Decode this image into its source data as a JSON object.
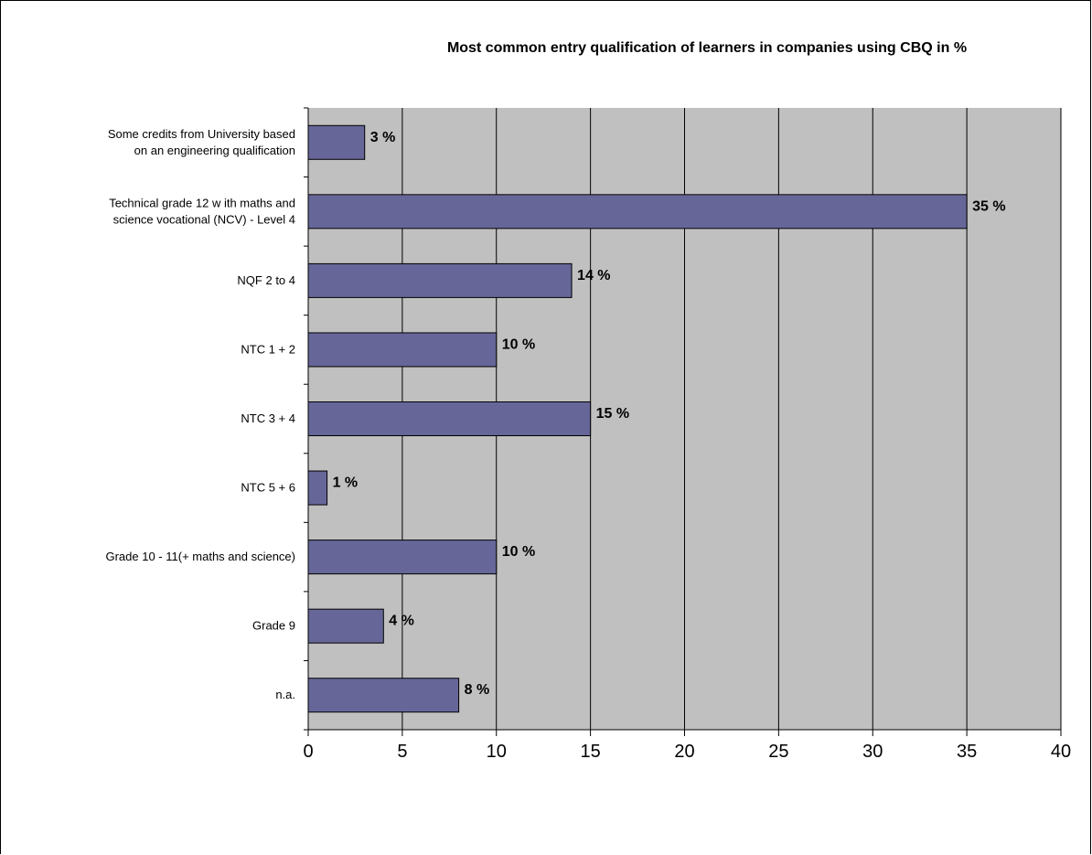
{
  "chart_data": {
    "type": "bar",
    "orientation": "horizontal",
    "title": "Most common entry qualification of learners in companies using CBQ in %",
    "categories": [
      "Some credits from University based on an engineering qualification",
      "Technical grade 12 with maths and science vocational (NCV) - Level 4",
      "NQF 2 to 4",
      "NTC 1 + 2",
      "NTC 3 + 4",
      "NTC 5 + 6",
      "Grade 10 - 11(+ maths and science)",
      "Grade 9",
      "n.a."
    ],
    "category_lines": [
      [
        "Some credits from University based",
        "on an engineering qualification"
      ],
      [
        "Technical grade 12 w ith maths and",
        "science vocational (NCV) - Level 4"
      ],
      [
        "NQF 2 to 4"
      ],
      [
        "NTC 1 + 2"
      ],
      [
        "NTC 3 + 4"
      ],
      [
        "NTC 5 + 6"
      ],
      [
        "Grade 10 - 11(+ maths and science)"
      ],
      [
        "Grade 9"
      ],
      [
        "n.a."
      ]
    ],
    "values": [
      3,
      35,
      14,
      10,
      15,
      1,
      10,
      4,
      8
    ],
    "data_labels": [
      "3 %",
      "35 %",
      "14 %",
      "10 %",
      "15 %",
      "1 %",
      "10 %",
      "4 %",
      "8 %"
    ],
    "xlim": [
      0,
      40
    ],
    "x_ticks": [
      0,
      5,
      10,
      15,
      20,
      25,
      30,
      35,
      40
    ],
    "x_tick_labels": [
      "0",
      "5",
      "10",
      "15",
      "20",
      "25",
      "30",
      "35",
      "40"
    ],
    "grid": true,
    "legend": "none",
    "colors": {
      "bar": "#666699",
      "plot_background": "#C0C0C0",
      "gridline": "#000000"
    }
  }
}
